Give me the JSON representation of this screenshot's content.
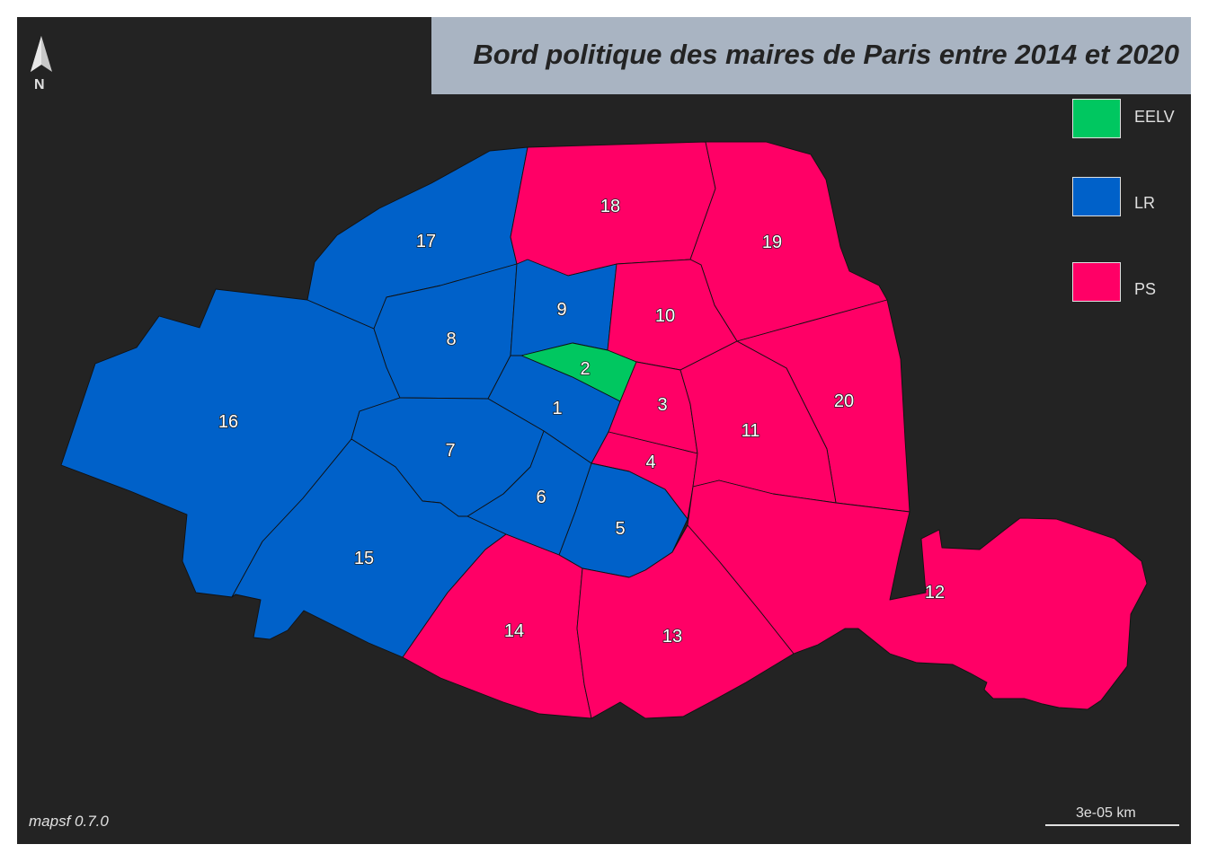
{
  "map": {
    "title": "Bord politique des maires de Paris entre 2014 et 2020",
    "credits": "mapsf 0.7.0",
    "north_label": "N",
    "scale_label": "3e-05 km",
    "colors": {
      "EELV": "#00c760",
      "LR": "#0061c9",
      "PS": "#ff0066",
      "background": "#232323",
      "title_box": "#a9b4c2"
    },
    "legend": [
      {
        "label": "EELV",
        "color": "#00c760"
      },
      {
        "label": "LR",
        "color": "#0061c9"
      },
      {
        "label": "PS",
        "color": "#ff0066"
      }
    ],
    "arrondissements": [
      {
        "label": "1",
        "party": "LR"
      },
      {
        "label": "2",
        "party": "EELV"
      },
      {
        "label": "3",
        "party": "PS"
      },
      {
        "label": "4",
        "party": "PS"
      },
      {
        "label": "5",
        "party": "LR"
      },
      {
        "label": "6",
        "party": "LR"
      },
      {
        "label": "7",
        "party": "LR"
      },
      {
        "label": "8",
        "party": "LR"
      },
      {
        "label": "9",
        "party": "LR"
      },
      {
        "label": "10",
        "party": "PS"
      },
      {
        "label": "11",
        "party": "PS"
      },
      {
        "label": "12",
        "party": "PS"
      },
      {
        "label": "13",
        "party": "PS"
      },
      {
        "label": "14",
        "party": "PS"
      },
      {
        "label": "15",
        "party": "LR"
      },
      {
        "label": "16",
        "party": "LR"
      },
      {
        "label": "17",
        "party": "LR"
      },
      {
        "label": "18",
        "party": "PS"
      },
      {
        "label": "19",
        "party": "PS"
      },
      {
        "label": "20",
        "party": "PS"
      }
    ]
  }
}
